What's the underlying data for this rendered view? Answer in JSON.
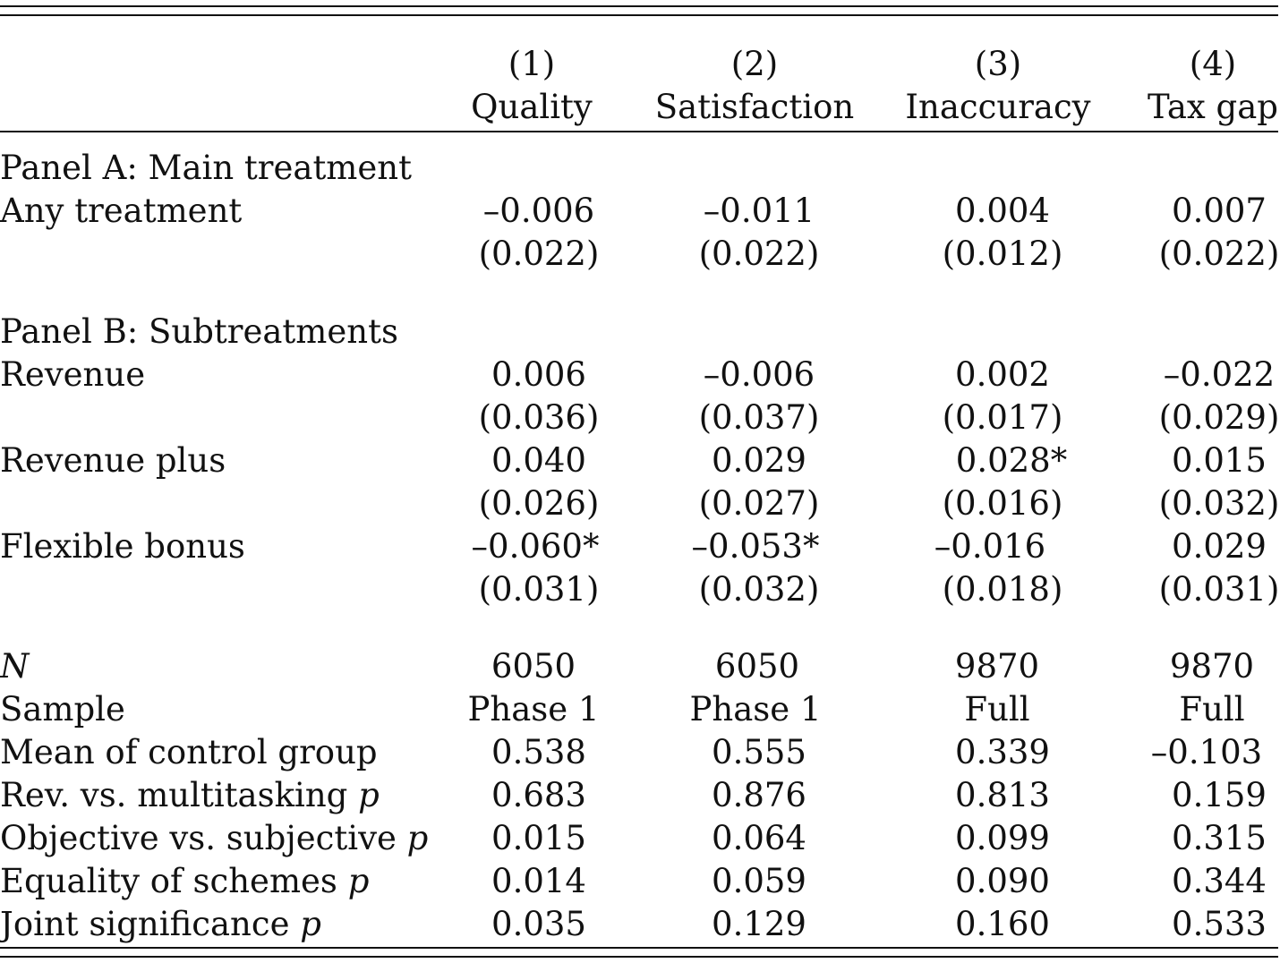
{
  "columns": {
    "numbers": [
      "(1)",
      "(2)",
      "(3)",
      "(4)"
    ],
    "names": [
      "Quality",
      "Satisfaction",
      "Inaccuracy",
      "Tax gap"
    ]
  },
  "panel_a": {
    "title": "Panel A: Main treatment",
    "rows": [
      {
        "label": "Any treatment",
        "coef": [
          "–0.006",
          "–0.011",
          "0.004",
          "0.007"
        ],
        "se": [
          "(0.022)",
          "(0.022)",
          "(0.012)",
          "(0.022)"
        ]
      }
    ]
  },
  "panel_b": {
    "title": "Panel B: Subtreatments",
    "rows": [
      {
        "label": "Revenue",
        "coef": [
          "0.006",
          "–0.006",
          "0.002",
          "–0.022"
        ],
        "se": [
          "(0.036)",
          "(0.037)",
          "(0.017)",
          "(0.029)"
        ]
      },
      {
        "label": "Revenue plus",
        "coef": [
          "0.040",
          "0.029",
          "0.028*",
          "0.015"
        ],
        "se": [
          "(0.026)",
          "(0.027)",
          "(0.016)",
          "(0.032)"
        ]
      },
      {
        "label": "Flexible bonus",
        "coef": [
          "–0.060*",
          "–0.053*",
          "–0.016",
          "0.029"
        ],
        "se": [
          "(0.031)",
          "(0.032)",
          "(0.018)",
          "(0.031)"
        ]
      }
    ]
  },
  "stats": [
    {
      "label": "N",
      "values": [
        "6050",
        "6050",
        "9870",
        "9870"
      ]
    },
    {
      "label": "Sample",
      "values": [
        "Phase 1",
        "Phase 1",
        "Full",
        "Full"
      ]
    },
    {
      "label": "Mean of control group",
      "values": [
        "0.538",
        "0.555",
        "0.339",
        "–0.103"
      ]
    },
    {
      "label": "Rev. vs. multitasking",
      "p": "p",
      "values": [
        "0.683",
        "0.876",
        "0.813",
        "0.159"
      ]
    },
    {
      "label": "Objective vs. subjective",
      "p": "p",
      "values": [
        "0.015",
        "0.064",
        "0.099",
        "0.315"
      ]
    },
    {
      "label": "Equality of schemes",
      "p": "p",
      "values": [
        "0.014",
        "0.059",
        "0.090",
        "0.344"
      ]
    },
    {
      "label": "Joint significance",
      "p": "p",
      "values": [
        "0.035",
        "0.129",
        "0.160",
        "0.533"
      ]
    }
  ]
}
